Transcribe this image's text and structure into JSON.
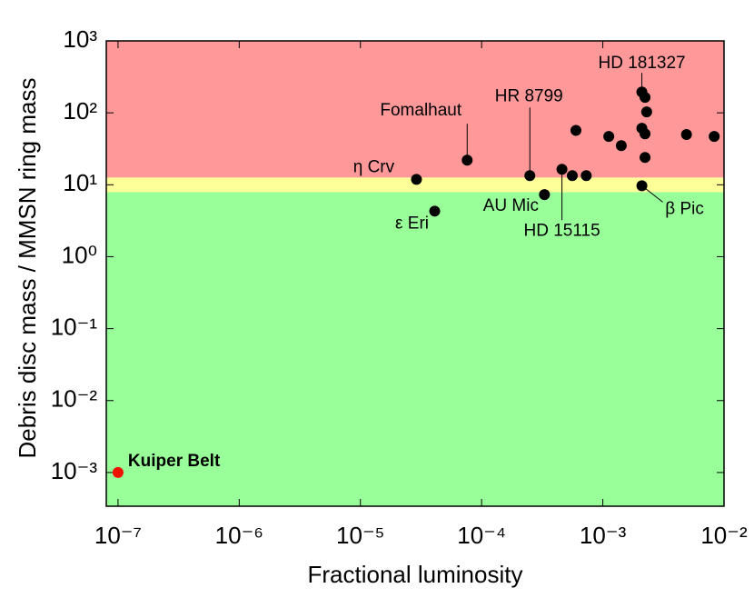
{
  "chart_data": {
    "type": "scatter",
    "xlabel": "Fractional luminosity",
    "ylabel": "Debris disc mass / MMSN ring mass",
    "xscale": "log",
    "yscale": "log",
    "xlim": [
      8e-08,
      0.01
    ],
    "ylim": [
      0.00034,
      1000
    ],
    "xticks": [
      {
        "value": 1e-07,
        "label": "10⁻⁷"
      },
      {
        "value": 1e-06,
        "label": "10⁻⁶"
      },
      {
        "value": 1e-05,
        "label": "10⁻⁵"
      },
      {
        "value": 0.0001,
        "label": "10⁻⁴"
      },
      {
        "value": 0.001,
        "label": "10⁻³"
      },
      {
        "value": 0.01,
        "label": "10⁻²"
      }
    ],
    "yticks": [
      {
        "value": 0.001,
        "label": "10⁻³"
      },
      {
        "value": 0.01,
        "label": "10⁻²"
      },
      {
        "value": 0.1,
        "label": "10⁻¹"
      },
      {
        "value": 1,
        "label": "10⁰"
      },
      {
        "value": 10,
        "label": "10¹"
      },
      {
        "value": 100,
        "label": "10²"
      },
      {
        "value": 1000,
        "label": "10³"
      }
    ],
    "bands": [
      {
        "color": "#99ff99",
        "from": 0.00034,
        "to": 7.9
      },
      {
        "color": "#ffff99",
        "from": 7.9,
        "to": 12.6
      },
      {
        "color": "#ff9999",
        "from": 12.6,
        "to": 1000
      }
    ],
    "series": [
      {
        "color": "#000000",
        "x": [
          2.9e-05,
          4.1e-05,
          7.6e-05,
          0.00025,
          0.00033,
          0.00046,
          0.00056,
          0.00073,
          0.0006,
          0.00112,
          0.00142,
          0.0021,
          0.00223,
          0.0023,
          0.0021,
          0.00223,
          0.00223,
          0.0021,
          0.0049,
          0.0083
        ],
        "values": [
          11.9,
          4.3,
          22,
          13.4,
          7.3,
          16.4,
          13.4,
          13.4,
          57,
          47,
          35,
          195,
          164,
          103,
          61,
          51,
          24,
          9.7,
          50,
          47
        ],
        "labels": [
          "η Crv",
          "ε Eri",
          "Fomalhaut",
          "HR 8799",
          "AU Mic",
          "HD 15115",
          null,
          null,
          null,
          null,
          null,
          "HD 181327",
          null,
          null,
          null,
          null,
          null,
          "β Pic",
          null,
          null
        ]
      },
      {
        "name": "Kuiper Belt",
        "color": "#ee1100",
        "x": [
          1e-07
        ],
        "values": [
          0.001
        ]
      }
    ]
  }
}
